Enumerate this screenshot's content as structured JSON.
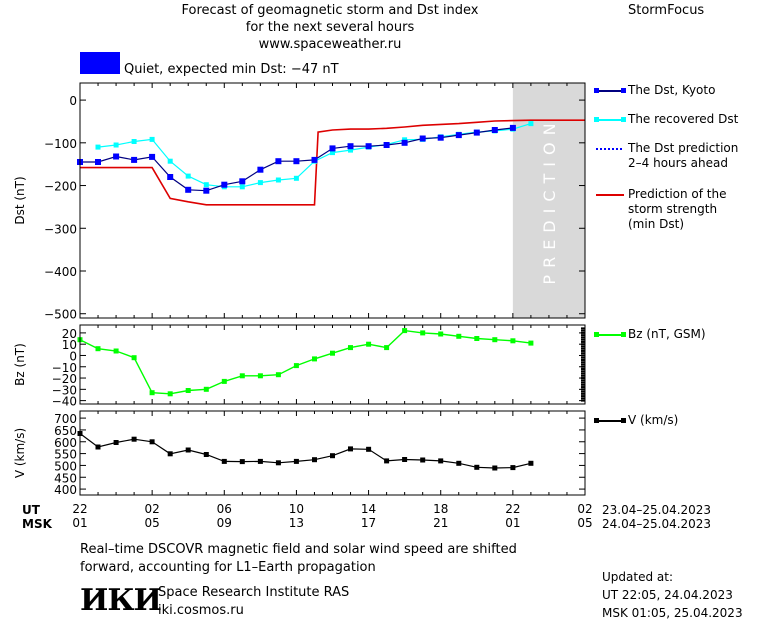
{
  "header": {
    "line1": "Forecast of geomagnetic storm and Dst index",
    "line2": "for the next several hours",
    "line3": "www.spaceweather.ru",
    "brand": "StormFocus"
  },
  "status": {
    "text": "Quiet, expected min Dst: −47 nT",
    "color": "#0000ff"
  },
  "prediction_label": "PREDICTION",
  "x_axis": {
    "ut_label": "UT",
    "msk_label": "MSK",
    "ut_ticks": [
      "22",
      "02",
      "06",
      "10",
      "14",
      "18",
      "22",
      "02"
    ],
    "msk_ticks": [
      "01",
      "05",
      "09",
      "13",
      "17",
      "21",
      "01",
      "05"
    ],
    "ut_range": "23.04–25.04.2023",
    "msk_range": "24.04–25.04.2023"
  },
  "legend": {
    "dst_kyoto": "The Dst, Kyoto",
    "dst_recovered": "The recovered Dst",
    "dst_prediction": [
      "The Dst prediction",
      "2–4 hours ahead"
    ],
    "storm_prediction": [
      "Prediction of the",
      "storm strength",
      "(min Dst)"
    ],
    "bz": "Bz (nT, GSM)",
    "v": "V (km/s)"
  },
  "footer": {
    "note_line1": "Real–time DSCOVR magnetic field and solar wind speed are shifted",
    "note_line2": "forward, accounting for L1–Earth propagation",
    "institute": "Space Research Institute RAS",
    "website": "iki.cosmos.ru",
    "logo_text": "ИКИ",
    "updated_label": "Updated at:",
    "updated_ut": "UT    22:05, 24.04.2023",
    "updated_msk": "MSK 01:05, 25.04.2023"
  },
  "colors": {
    "kyoto": "#0000ff",
    "recovered": "#00ffff",
    "storm": "#dd0000",
    "bz": "#00ff00",
    "v": "#000000",
    "prediction_band": "#d9d9d9"
  },
  "chart_data": [
    {
      "type": "line",
      "ylabel": "Dst (nT)",
      "x_range": [
        22,
        50
      ],
      "y_range": [
        -510,
        40
      ],
      "y_ticks": [
        0,
        -100,
        -200,
        -300,
        -400,
        -500
      ],
      "prediction_start": 46,
      "series": [
        {
          "name": "The Dst, Kyoto",
          "x": [
            22,
            23,
            24,
            25,
            26,
            27,
            28,
            29,
            30,
            31,
            32,
            33,
            34,
            35,
            36,
            37,
            38,
            39,
            40,
            41,
            42,
            43,
            44,
            45,
            46
          ],
          "y": [
            -145,
            -145,
            -132,
            -140,
            -133,
            -180,
            -210,
            -212,
            -198,
            -190,
            -163,
            -143,
            -143,
            -140,
            -113,
            -108,
            -108,
            -105,
            -100,
            -90,
            -88,
            -82,
            -76,
            -70,
            -65
          ]
        },
        {
          "name": "The recovered Dst",
          "x": [
            23,
            24,
            25,
            26,
            27,
            28,
            29,
            30,
            31,
            32,
            33,
            34,
            35,
            36,
            37,
            38,
            39,
            40,
            41,
            42,
            43,
            44,
            45,
            46,
            47
          ],
          "y": [
            -110,
            -105,
            -97,
            -92,
            -143,
            -178,
            -198,
            -203,
            -203,
            -193,
            -187,
            -183,
            -143,
            -123,
            -117,
            -110,
            -104,
            -93,
            -92,
            -86,
            -80,
            -75,
            -72,
            -68,
            -55
          ]
        },
        {
          "name": "Prediction of the storm strength (min Dst)",
          "x": [
            22,
            25,
            26,
            27,
            28,
            29,
            30,
            31,
            32,
            33,
            34,
            35,
            35.2,
            36,
            37,
            38,
            39,
            40,
            41,
            42,
            43,
            44,
            45,
            46,
            47,
            48,
            49,
            50
          ],
          "y": [
            -158,
            -158,
            -158,
            -230,
            -238,
            -245,
            -245,
            -245,
            -245,
            -245,
            -245,
            -245,
            -75,
            -70,
            -68,
            -68,
            -66,
            -63,
            -59,
            -57,
            -55,
            -52,
            -49,
            -48,
            -47,
            -47,
            -47,
            -47
          ]
        }
      ]
    },
    {
      "type": "line",
      "ylabel": "Bz (nT)",
      "y_range": [
        -43,
        27
      ],
      "y_ticks": [
        20,
        10,
        0,
        -10,
        -20,
        -30,
        -40
      ],
      "series": [
        {
          "name": "Bz (nT, GSM)",
          "x": [
            22,
            23,
            24,
            25,
            26,
            27,
            28,
            29,
            30,
            31,
            32,
            33,
            34,
            35,
            36,
            37,
            38,
            39,
            40,
            41,
            42,
            43,
            44,
            45,
            46,
            47
          ],
          "y": [
            14,
            6,
            4,
            -2,
            -33,
            -34,
            -31,
            -30,
            -23,
            -18,
            -18,
            -17,
            -9,
            -3,
            2,
            7,
            10,
            7,
            22,
            20,
            19,
            17,
            15,
            14,
            13,
            11
          ]
        }
      ]
    },
    {
      "type": "line",
      "ylabel": "V (km/s)",
      "y_range": [
        375,
        730
      ],
      "y_ticks": [
        700,
        650,
        600,
        550,
        500,
        450,
        400
      ],
      "series": [
        {
          "name": "V (km/s)",
          "x": [
            22,
            23,
            24,
            25,
            26,
            27,
            28,
            29,
            30,
            31,
            32,
            33,
            34,
            35,
            36,
            37,
            38,
            39,
            40,
            41,
            42,
            43,
            44,
            45,
            46,
            47
          ],
          "y": [
            635,
            578,
            597,
            611,
            600,
            549,
            565,
            546,
            517,
            516,
            517,
            511,
            517,
            524,
            541,
            570,
            568,
            519,
            525,
            523,
            519,
            509,
            492,
            489,
            491,
            509
          ]
        }
      ]
    }
  ]
}
